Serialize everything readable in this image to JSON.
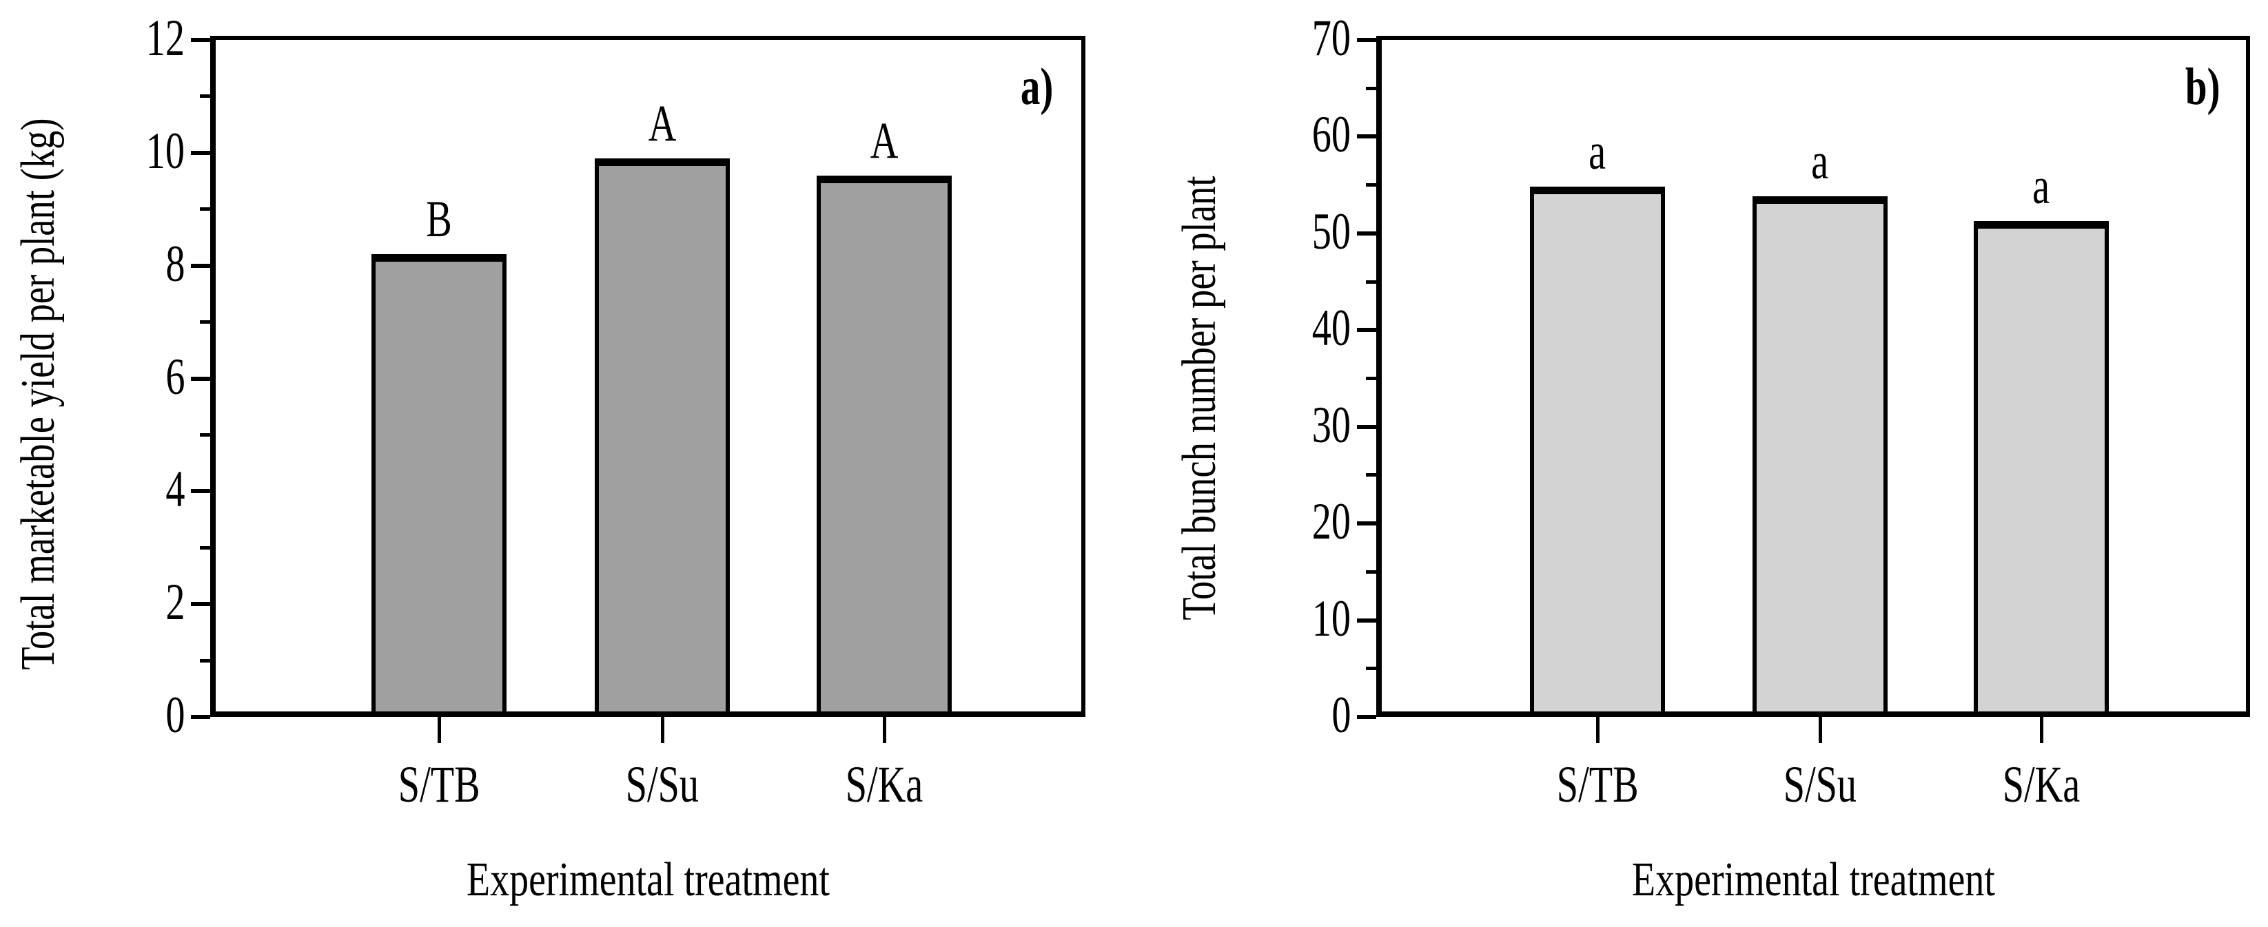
{
  "figure": {
    "background_color": "#ffffff",
    "text_color": "#000000"
  },
  "chart_data": [
    {
      "type": "bar",
      "panel_label": "a)",
      "title": "",
      "xlabel": "Experimental treatment",
      "ylabel": "Total marketable yield per plant (kg)",
      "categories": [
        "S/TB",
        "S/Su",
        "S/Ka"
      ],
      "values": [
        8.2,
        9.9,
        9.6
      ],
      "bar_labels": [
        "B",
        "A",
        "A"
      ],
      "ylim": [
        0,
        12
      ],
      "yticks": [
        0,
        2,
        4,
        6,
        8,
        10,
        12
      ],
      "ytick_minor_step": 1,
      "grid": false,
      "legend": "none",
      "bar_fill": "#a0a0a0",
      "bar_edge": "#000000"
    },
    {
      "type": "bar",
      "panel_label": "b)",
      "title": "",
      "xlabel": "Experimental treatment",
      "ylabel": "Total bunch number per plant",
      "categories": [
        "S/TB",
        "S/Su",
        "S/Ka"
      ],
      "values": [
        54.8,
        53.8,
        51.3
      ],
      "bar_labels": [
        "a",
        "a",
        "a"
      ],
      "ylim": [
        0,
        70
      ],
      "yticks": [
        0,
        10,
        20,
        30,
        40,
        50,
        60,
        70
      ],
      "ytick_minor_step": 5,
      "grid": false,
      "legend": "none",
      "bar_fill": "#d3d3d3",
      "bar_edge": "#000000"
    }
  ]
}
